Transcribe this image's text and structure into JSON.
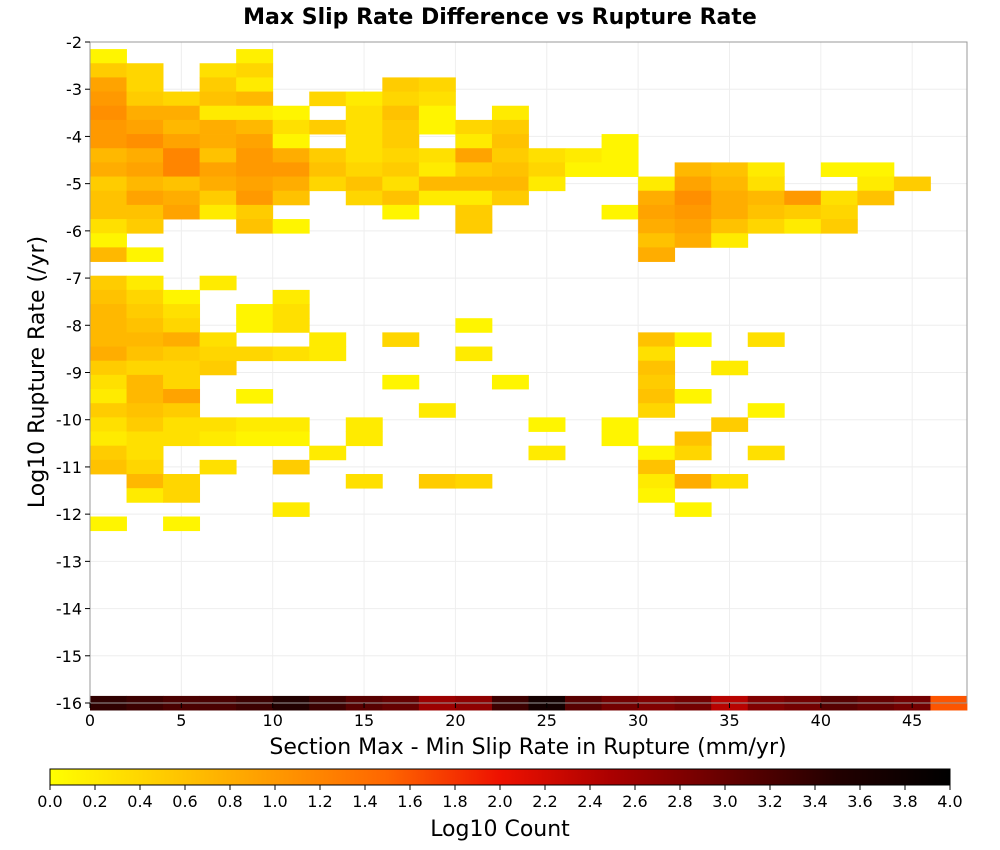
{
  "chart_data": {
    "type": "heatmap",
    "title": "Max Slip Rate Difference vs Rupture Rate",
    "xlabel": "Section Max - Min Slip Rate in Rupture (mm/yr)",
    "ylabel": "Log10 Rupture Rate (/yr)",
    "xlim": [
      0,
      48
    ],
    "ylim": [
      -16,
      -2
    ],
    "x_ticks": [
      0,
      5,
      10,
      15,
      20,
      25,
      30,
      35,
      40,
      45
    ],
    "y_ticks": [
      -2,
      -3,
      -4,
      -5,
      -6,
      -7,
      -8,
      -9,
      -10,
      -11,
      -12,
      -13,
      -14,
      -15,
      -16
    ],
    "x_bin_width": 2,
    "y_bin_height": 0.3,
    "grid": true,
    "colorbar": {
      "label": "Log10 Count",
      "range": [
        0,
        4
      ],
      "ticks": [
        "0.0",
        "0.2",
        "0.4",
        "0.6",
        "0.8",
        "1.0",
        "1.2",
        "1.4",
        "1.6",
        "1.8",
        "2.0",
        "2.2",
        "2.4",
        "2.6",
        "2.8",
        "3.0",
        "3.2",
        "3.4",
        "3.6",
        "3.8",
        "4.0"
      ],
      "placement": "bottom",
      "colors": [
        "#ffff00",
        "#ffcc00",
        "#ff9900",
        "#ff6600",
        "#ee1100",
        "#aa0000",
        "#660000",
        "#220000",
        "#000000"
      ]
    },
    "rows": [
      {
        "y": -2.3,
        "x": [
          0,
          8
        ],
        "values": [
          0.1,
          0.15
        ]
      },
      {
        "y": -2.6,
        "x": [
          0,
          2,
          6,
          8
        ],
        "values": [
          0.5,
          0.4,
          0.3,
          0.4
        ]
      },
      {
        "y": -2.9,
        "x": [
          0,
          2,
          6,
          8,
          16,
          18
        ],
        "values": [
          0.9,
          0.4,
          0.5,
          0.2,
          0.5,
          0.4
        ]
      },
      {
        "y": -3.2,
        "x": [
          0,
          2,
          4,
          6,
          8,
          12,
          14,
          16,
          18
        ],
        "values": [
          1.0,
          0.5,
          0.4,
          0.6,
          0.7,
          0.4,
          0.2,
          0.4,
          0.3
        ]
      },
      {
        "y": -3.5,
        "x": [
          0,
          2,
          4,
          6,
          8,
          10,
          14,
          16,
          18,
          22
        ],
        "values": [
          1.1,
          0.8,
          0.8,
          0.2,
          0.2,
          0.1,
          0.3,
          0.6,
          0.1,
          0.2
        ]
      },
      {
        "y": -3.8,
        "x": [
          0,
          2,
          4,
          6,
          8,
          10,
          12,
          14,
          16,
          18,
          20,
          22
        ],
        "values": [
          1.0,
          0.9,
          0.7,
          0.8,
          0.7,
          0.3,
          0.5,
          0.3,
          0.5,
          0.1,
          0.4,
          0.5
        ]
      },
      {
        "y": -4.1,
        "x": [
          0,
          2,
          4,
          6,
          8,
          10,
          14,
          16,
          20,
          22,
          28
        ],
        "values": [
          1.0,
          1.1,
          0.9,
          0.8,
          0.9,
          0.1,
          0.3,
          0.5,
          0.2,
          0.6,
          0.1
        ]
      },
      {
        "y": -4.4,
        "x": [
          0,
          2,
          4,
          6,
          8,
          10,
          12,
          14,
          16,
          18,
          20,
          22,
          24,
          26,
          28
        ],
        "values": [
          0.7,
          0.8,
          1.2,
          0.6,
          1.0,
          0.8,
          0.5,
          0.3,
          0.4,
          0.3,
          0.9,
          0.5,
          0.3,
          0.2,
          0.1
        ]
      },
      {
        "y": -4.7,
        "x": [
          0,
          2,
          4,
          6,
          8,
          10,
          12,
          14,
          16,
          18,
          20,
          22,
          24,
          26,
          28,
          32,
          34,
          36,
          40,
          42
        ],
        "values": [
          0.8,
          0.9,
          1.2,
          0.9,
          1.0,
          1.0,
          0.6,
          0.4,
          0.5,
          0.2,
          0.5,
          0.6,
          0.4,
          0.1,
          0.1,
          0.7,
          0.6,
          0.2,
          0.1,
          0.1
        ]
      },
      {
        "y": -5.0,
        "x": [
          0,
          2,
          4,
          6,
          8,
          10,
          12,
          14,
          16,
          18,
          20,
          22,
          24,
          30,
          32,
          34,
          36,
          42,
          44
        ],
        "values": [
          0.5,
          0.7,
          0.6,
          0.8,
          0.9,
          0.8,
          0.4,
          0.6,
          0.3,
          0.7,
          0.7,
          0.7,
          0.2,
          0.2,
          0.9,
          0.7,
          0.3,
          0.2,
          0.5
        ]
      },
      {
        "y": -5.3,
        "x": [
          0,
          2,
          4,
          6,
          8,
          10,
          14,
          16,
          18,
          20,
          22,
          30,
          32,
          34,
          36,
          38,
          40,
          42
        ],
        "values": [
          0.6,
          0.9,
          0.8,
          0.5,
          1.0,
          0.6,
          0.4,
          0.6,
          0.2,
          0.2,
          0.5,
          0.8,
          1.1,
          0.8,
          0.7,
          1.0,
          0.3,
          0.6
        ]
      },
      {
        "y": -5.6,
        "x": [
          0,
          2,
          4,
          6,
          8,
          16,
          20,
          28,
          30,
          32,
          34,
          36,
          38,
          40
        ],
        "values": [
          0.6,
          0.6,
          0.9,
          0.2,
          0.5,
          0.1,
          0.5,
          0.1,
          0.9,
          1.0,
          0.8,
          0.6,
          0.5,
          0.4
        ]
      },
      {
        "y": -5.9,
        "x": [
          0,
          2,
          8,
          10,
          20,
          30,
          32,
          34,
          36,
          38,
          40
        ],
        "values": [
          0.3,
          0.5,
          0.6,
          0.1,
          0.5,
          0.8,
          0.9,
          0.6,
          0.4,
          0.2,
          0.5
        ]
      },
      {
        "y": -6.2,
        "x": [
          0,
          30,
          32,
          34
        ],
        "values": [
          0.1,
          0.6,
          0.8,
          0.2
        ]
      },
      {
        "y": -6.5,
        "x": [
          0,
          2,
          30
        ],
        "values": [
          0.7,
          0.1,
          0.8
        ]
      },
      {
        "y": -7.1,
        "x": [
          0,
          2,
          6
        ],
        "values": [
          0.5,
          0.2,
          0.2
        ]
      },
      {
        "y": -7.4,
        "x": [
          0,
          2,
          4,
          10
        ],
        "values": [
          0.6,
          0.4,
          0.1,
          0.2
        ]
      },
      {
        "y": -7.7,
        "x": [
          0,
          2,
          4,
          8,
          10
        ],
        "values": [
          0.7,
          0.5,
          0.3,
          0.1,
          0.3
        ]
      },
      {
        "y": -8.0,
        "x": [
          0,
          2,
          4,
          8,
          10,
          20
        ],
        "values": [
          0.7,
          0.6,
          0.4,
          0.1,
          0.3,
          0.1
        ]
      },
      {
        "y": -8.3,
        "x": [
          0,
          2,
          4,
          6,
          12,
          16,
          30,
          32,
          36
        ],
        "values": [
          0.7,
          0.7,
          0.8,
          0.3,
          0.2,
          0.4,
          0.6,
          0.1,
          0.3
        ]
      },
      {
        "y": -8.6,
        "x": [
          0,
          2,
          4,
          6,
          8,
          10,
          12,
          20,
          30
        ],
        "values": [
          0.8,
          0.6,
          0.5,
          0.4,
          0.4,
          0.3,
          0.2,
          0.2,
          0.3
        ]
      },
      {
        "y": -8.9,
        "x": [
          0,
          2,
          4,
          6,
          30,
          34
        ],
        "values": [
          0.5,
          0.4,
          0.4,
          0.5,
          0.6,
          0.2
        ]
      },
      {
        "y": -9.2,
        "x": [
          0,
          2,
          4,
          16,
          22,
          30
        ],
        "values": [
          0.3,
          0.7,
          0.4,
          0.1,
          0.1,
          0.5
        ]
      },
      {
        "y": -9.5,
        "x": [
          0,
          2,
          4,
          8,
          30,
          32
        ],
        "values": [
          0.2,
          0.7,
          0.9,
          0.1,
          0.6,
          0.1
        ]
      },
      {
        "y": -9.8,
        "x": [
          0,
          2,
          4,
          18,
          30,
          36
        ],
        "values": [
          0.5,
          0.6,
          0.5,
          0.2,
          0.4,
          0.1
        ]
      },
      {
        "y": -10.1,
        "x": [
          0,
          2,
          4,
          6,
          8,
          10,
          14,
          24,
          28,
          34
        ],
        "values": [
          0.3,
          0.5,
          0.3,
          0.3,
          0.2,
          0.2,
          0.2,
          0.1,
          0.1,
          0.5
        ]
      },
      {
        "y": -10.4,
        "x": [
          0,
          2,
          4,
          6,
          8,
          10,
          14,
          28,
          32
        ],
        "values": [
          0.2,
          0.3,
          0.3,
          0.2,
          0.1,
          0.1,
          0.2,
          0.1,
          0.6
        ]
      },
      {
        "y": -10.7,
        "x": [
          0,
          2,
          12,
          24,
          30,
          32,
          36
        ],
        "values": [
          0.5,
          0.3,
          0.2,
          0.2,
          0.1,
          0.4,
          0.3
        ]
      },
      {
        "y": -11.0,
        "x": [
          0,
          2,
          6,
          10,
          30
        ],
        "values": [
          0.6,
          0.4,
          0.3,
          0.5,
          0.6
        ]
      },
      {
        "y": -11.3,
        "x": [
          2,
          4,
          14,
          18,
          20,
          30,
          32,
          34
        ],
        "values": [
          0.7,
          0.4,
          0.3,
          0.5,
          0.4,
          0.2,
          0.8,
          0.3
        ]
      },
      {
        "y": -11.6,
        "x": [
          2,
          4,
          30
        ],
        "values": [
          0.2,
          0.4,
          0.1
        ]
      },
      {
        "y": -11.9,
        "x": [
          10,
          32
        ],
        "values": [
          0.2,
          0.1
        ]
      },
      {
        "y": -12.2,
        "x": [
          0,
          4
        ],
        "values": [
          0.1,
          0.1
        ]
      },
      {
        "y": -16.0,
        "x": [
          0,
          2,
          4,
          6,
          8,
          10,
          12,
          14,
          16,
          18,
          20,
          22,
          24,
          26,
          28,
          30,
          32,
          34,
          36,
          38,
          40,
          42,
          44,
          46
        ],
        "values": [
          3.4,
          3.3,
          3.2,
          3.2,
          3.3,
          3.5,
          3.3,
          3.1,
          3.0,
          2.6,
          2.7,
          3.3,
          3.7,
          3.1,
          2.9,
          2.8,
          2.9,
          2.4,
          2.8,
          2.9,
          3.1,
          3.0,
          2.9,
          1.6
        ]
      }
    ]
  }
}
